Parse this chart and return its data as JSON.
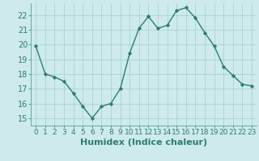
{
  "x": [
    0,
    1,
    2,
    3,
    4,
    5,
    6,
    7,
    8,
    9,
    10,
    11,
    12,
    13,
    14,
    15,
    16,
    17,
    18,
    19,
    20,
    21,
    22,
    23
  ],
  "y": [
    19.9,
    18.0,
    17.8,
    17.5,
    16.7,
    15.8,
    15.0,
    15.8,
    16.0,
    17.0,
    19.4,
    21.1,
    21.9,
    21.1,
    21.3,
    22.3,
    22.5,
    21.8,
    20.8,
    19.9,
    18.5,
    17.9,
    17.3,
    17.2
  ],
  "line_color": "#2e7d6e",
  "marker": "D",
  "marker_size": 2.2,
  "bg_color": "#ceeaea",
  "grid_color": "#a8d4d4",
  "xlabel": "Humidex (Indice chaleur)",
  "ylim": [
    14.5,
    22.8
  ],
  "xlim": [
    -0.5,
    23.5
  ],
  "yticks": [
    15,
    16,
    17,
    18,
    19,
    20,
    21,
    22
  ],
  "xticks": [
    0,
    1,
    2,
    3,
    4,
    5,
    6,
    7,
    8,
    9,
    10,
    11,
    12,
    13,
    14,
    15,
    16,
    17,
    18,
    19,
    20,
    21,
    22,
    23
  ],
  "tick_color": "#2e7d6e",
  "label_color": "#2e7d6e",
  "xlabel_fontsize": 8,
  "ytick_fontsize": 7,
  "xtick_fontsize": 6.5,
  "spine_color": "#5a9e9e",
  "linewidth": 1.0
}
